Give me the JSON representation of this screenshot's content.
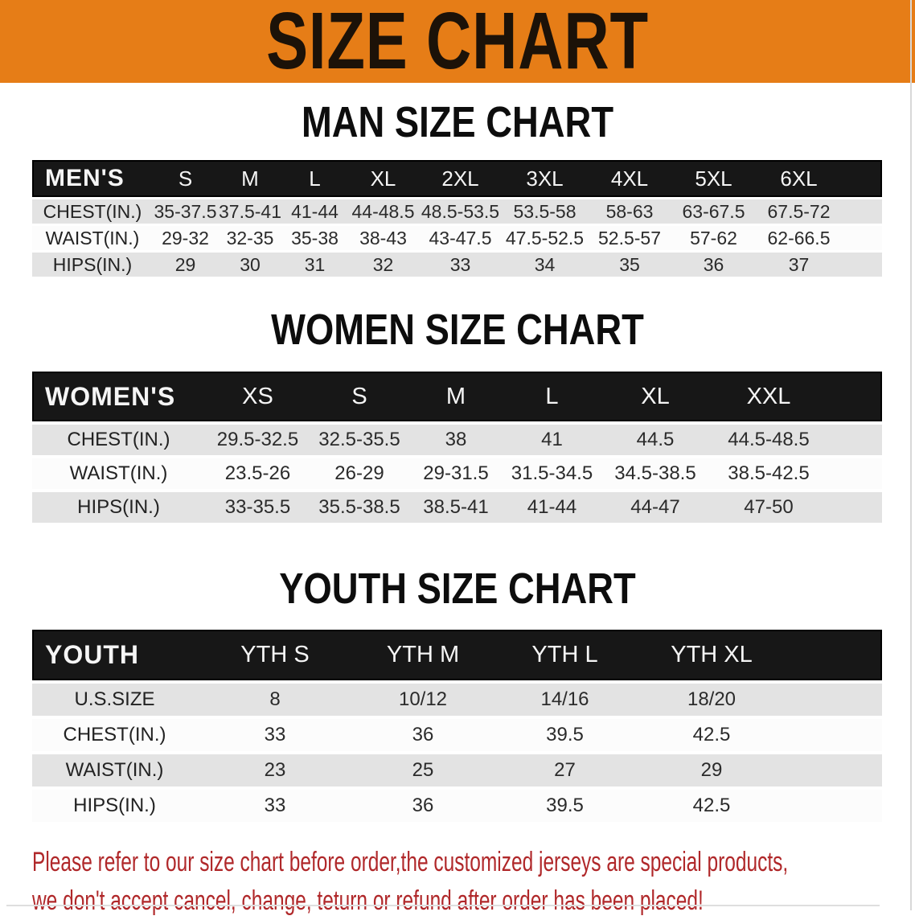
{
  "banner": {
    "title": "SIZE CHART"
  },
  "sections": [
    {
      "id": "men",
      "heading": "MAN SIZE CHART",
      "corner_label": "MEN'S",
      "columns": [
        "S",
        "M",
        "L",
        "XL",
        "2XL",
        "3XL",
        "4XL",
        "5XL",
        "6XL"
      ],
      "rows": [
        {
          "label": "CHEST(IN.)",
          "values": [
            "35-37.5",
            "37.5-41",
            "41-44",
            "44-48.5",
            "48.5-53.5",
            "53.5-58",
            "58-63",
            "63-67.5",
            "67.5-72"
          ]
        },
        {
          "label": "WAIST(IN.)",
          "values": [
            "29-32",
            "32-35",
            "35-38",
            "38-43",
            "43-47.5",
            "47.5-52.5",
            "52.5-57",
            "57-62",
            "62-66.5"
          ]
        },
        {
          "label": "HIPS(IN.)",
          "values": [
            "29",
            "30",
            "31",
            "32",
            "33",
            "34",
            "35",
            "36",
            "37"
          ]
        }
      ]
    },
    {
      "id": "women",
      "heading": "WOMEN SIZE CHART",
      "corner_label": "WOMEN'S",
      "columns": [
        "XS",
        "S",
        "M",
        "L",
        "XL",
        "XXL"
      ],
      "rows": [
        {
          "label": "CHEST(IN.)",
          "values": [
            "29.5-32.5",
            "32.5-35.5",
            "38",
            "41",
            "44.5",
            "44.5-48.5"
          ]
        },
        {
          "label": "WAIST(IN.)",
          "values": [
            "23.5-26",
            "26-29",
            "29-31.5",
            "31.5-34.5",
            "34.5-38.5",
            "38.5-42.5"
          ]
        },
        {
          "label": "HIPS(IN.)",
          "values": [
            "33-35.5",
            "35.5-38.5",
            "38.5-41",
            "41-44",
            "44-47",
            "47-50"
          ]
        }
      ]
    },
    {
      "id": "youth",
      "heading": "YOUTH SIZE CHART",
      "corner_label": "YOUTH",
      "columns": [
        "YTH S",
        "YTH M",
        "YTH L",
        "YTH XL"
      ],
      "rows": [
        {
          "label": "U.S.SIZE",
          "values": [
            "8",
            "10/12",
            "14/16",
            "18/20"
          ]
        },
        {
          "label": "CHEST(IN.)",
          "values": [
            "33",
            "36",
            "39.5",
            "42.5"
          ]
        },
        {
          "label": "WAIST(IN.)",
          "values": [
            "23",
            "25",
            "27",
            "29"
          ]
        },
        {
          "label": "HIPS(IN.)",
          "values": [
            "33",
            "36",
            "39.5",
            "42.5"
          ]
        }
      ]
    }
  ],
  "footer": {
    "lines": [
      "Please refer to our size chart before order,the customized jerseys are special products,",
      "we don't accept cancel, change, teturn or refund after order has been placed!"
    ]
  },
  "colors": {
    "banner_orange": "#E67D17",
    "header_bar_black": "#171717",
    "row_gray": "#E3E3E3",
    "warning_red": "#B0282A"
  }
}
